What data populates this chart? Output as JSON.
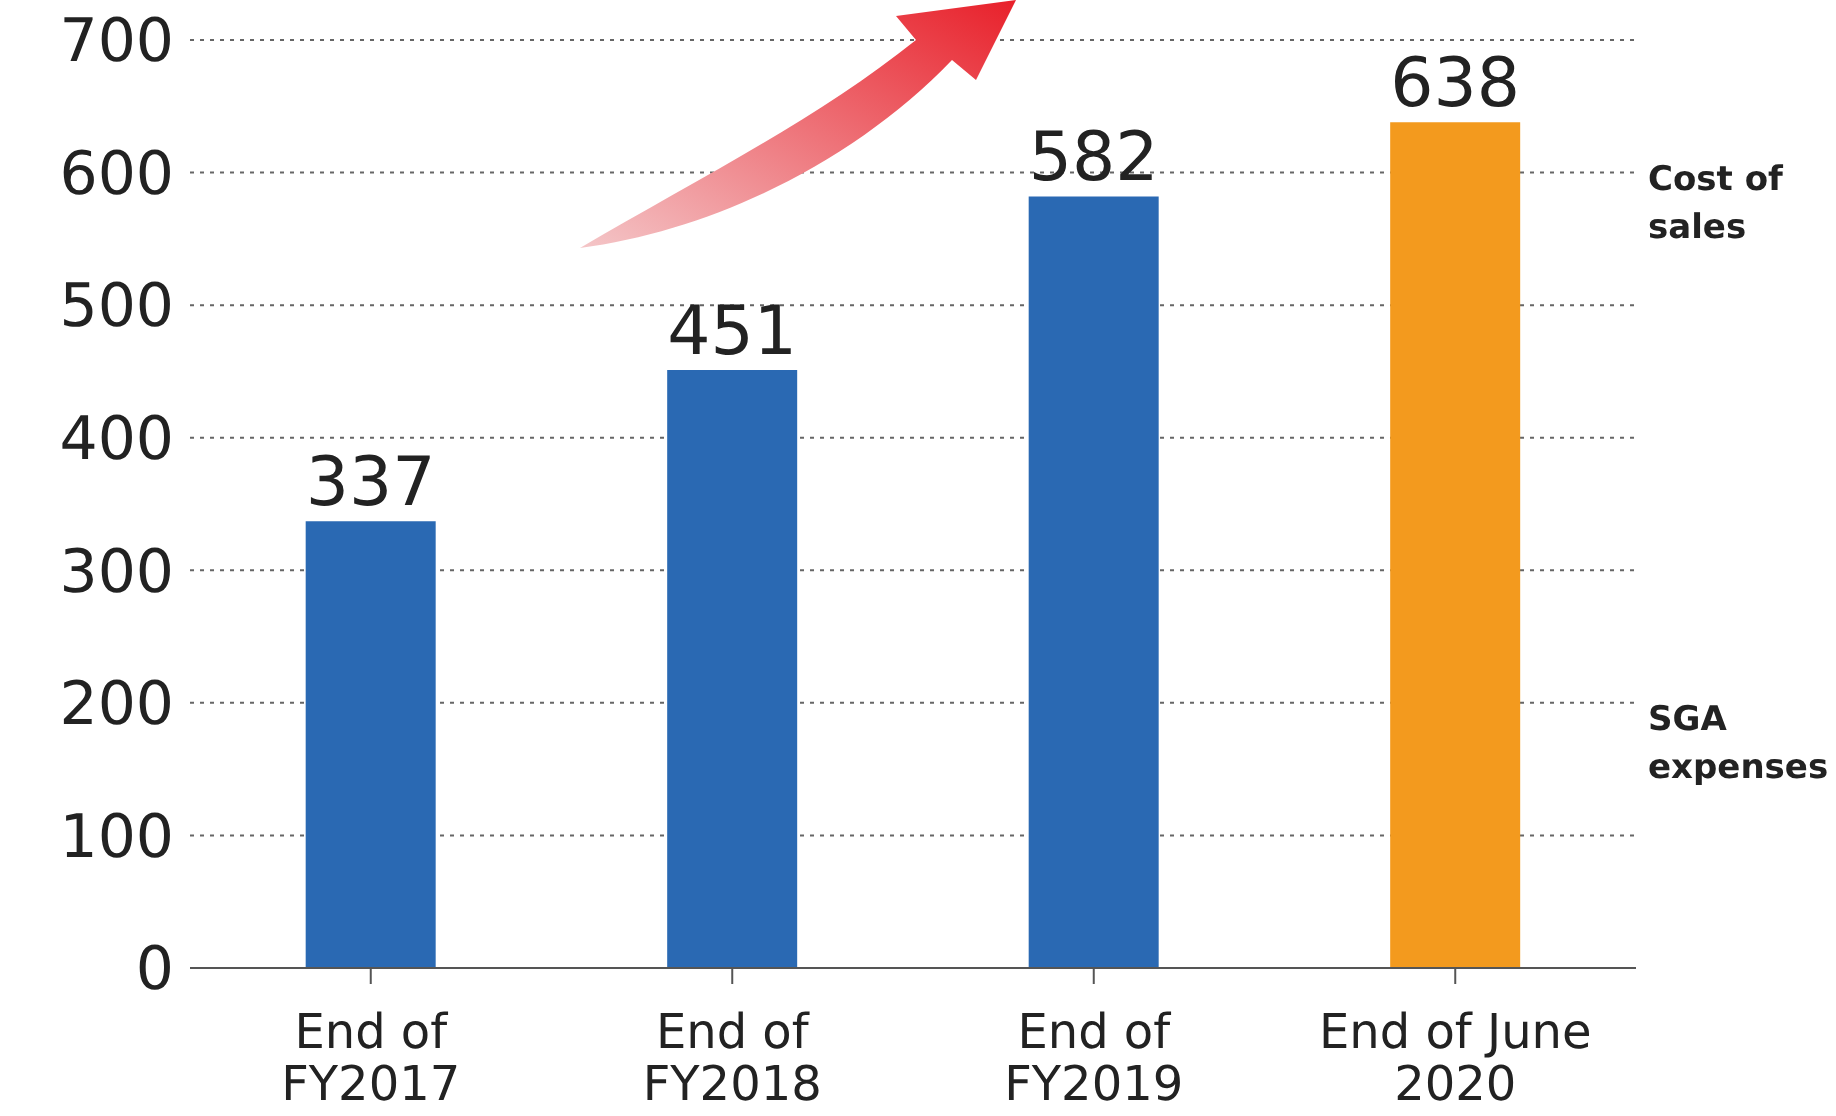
{
  "chart_data": {
    "type": "bar",
    "categories": [
      "End of FY2017",
      "End of FY2018",
      "End of FY2019",
      "End of June 2020"
    ],
    "values": [
      337,
      451,
      582,
      638
    ],
    "colors": [
      "#2a69b3",
      "#2a69b3",
      "#2a69b3",
      "#f39a1e"
    ],
    "ylim": [
      0,
      700
    ],
    "yticks": [
      0,
      100,
      200,
      300,
      400,
      500,
      600,
      700
    ],
    "grid": "y",
    "data_labels": true,
    "annotations": [
      "Cost of sales",
      "SGA expenses"
    ]
  }
}
